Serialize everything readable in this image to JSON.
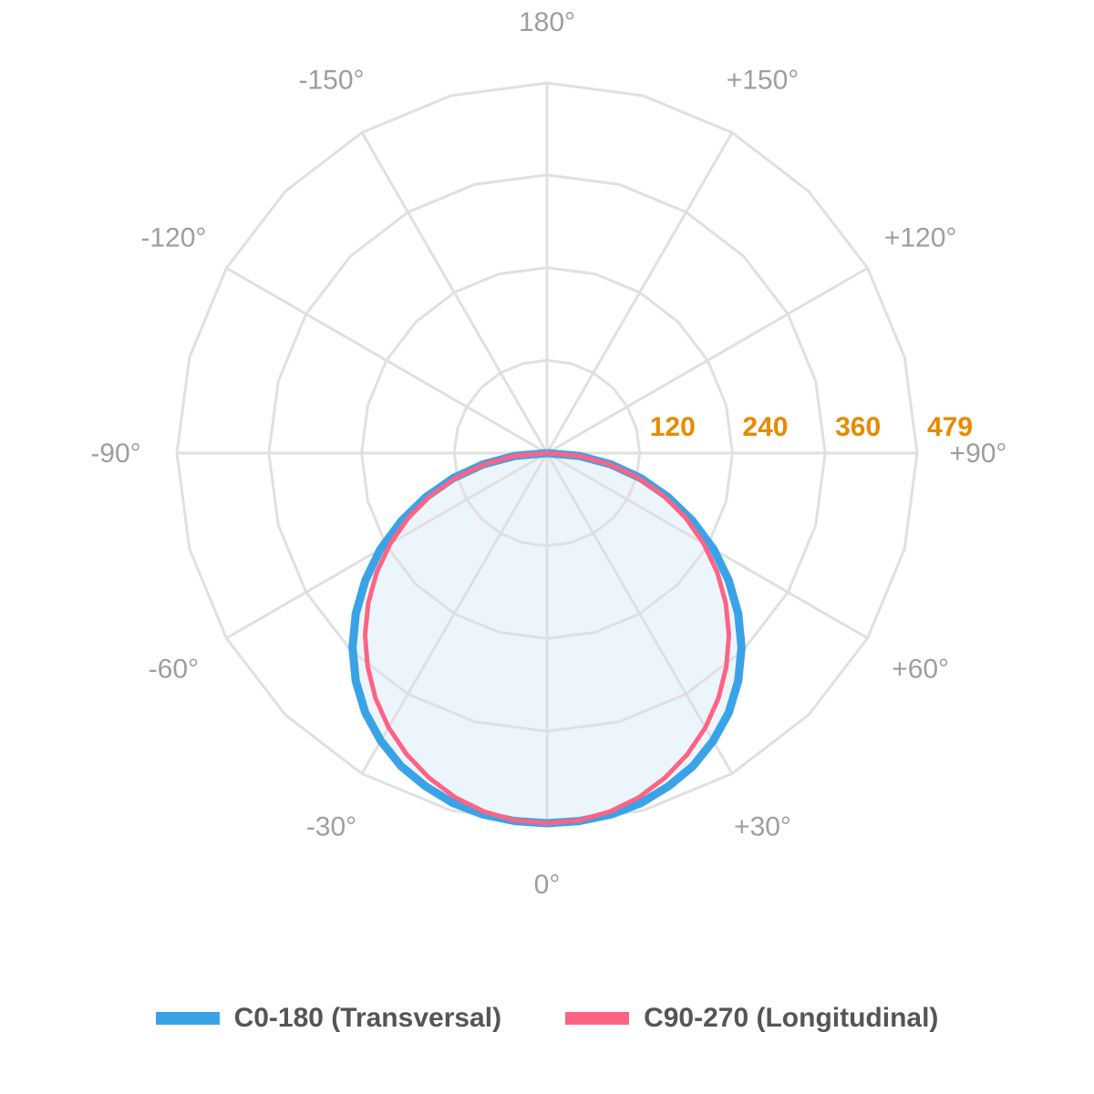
{
  "chart_data": {
    "type": "polar-line",
    "title": "",
    "angle_labels": [
      "0°",
      "+30°",
      "+60°",
      "+90°",
      "+120°",
      "+150°",
      "180°",
      "-150°",
      "-120°",
      "-90°",
      "-60°",
      "-30°"
    ],
    "angle_label_values": [
      0,
      30,
      60,
      90,
      120,
      150,
      180,
      -150,
      -120,
      -90,
      -60,
      -30
    ],
    "radial_ticks": [
      120,
      240,
      360,
      479
    ],
    "radial_tick_labels": [
      "120",
      "240",
      "360",
      "479"
    ],
    "radial_max": 479,
    "grid": true,
    "legend_position": "bottom",
    "angles": [
      -90,
      -85,
      -80,
      -75,
      -70,
      -65,
      -60,
      -55,
      -50,
      -45,
      -40,
      -35,
      -30,
      -25,
      -20,
      -15,
      -10,
      -5,
      0,
      5,
      10,
      15,
      20,
      25,
      30,
      35,
      40,
      45,
      50,
      55,
      60,
      65,
      70,
      75,
      80,
      85,
      90
    ],
    "series": [
      {
        "name": "C0-180 (Transversal)",
        "color": "#3aa3e8",
        "fill": "#edf5fc",
        "values": [
          0,
          42,
          84,
          126,
          167,
          208,
          249,
          287,
          323,
          356,
          385,
          410,
          430,
          447,
          459,
          469,
          475,
          478,
          479,
          478,
          475,
          469,
          459,
          447,
          430,
          410,
          385,
          356,
          323,
          287,
          249,
          208,
          167,
          126,
          84,
          42,
          0
        ]
      },
      {
        "name": "C90-270 (Longitudinal)",
        "color": "#ff6384",
        "values": [
          0,
          41,
          81,
          121,
          160,
          198,
          234,
          269,
          302,
          333,
          361,
          387,
          410,
          430,
          447,
          461,
          471,
          477,
          479,
          477,
          471,
          461,
          447,
          430,
          410,
          387,
          361,
          333,
          302,
          269,
          234,
          198,
          160,
          121,
          81,
          41,
          0
        ]
      }
    ],
    "colors": {
      "grid": "#e0e0e0",
      "angle_label": "#9e9e9e",
      "radial_label": "#e88a00"
    }
  }
}
